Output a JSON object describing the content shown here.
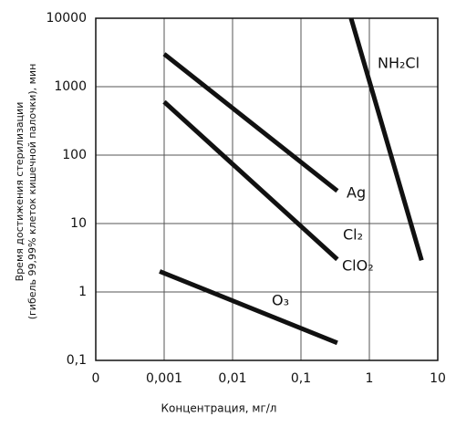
{
  "chart_data": {
    "type": "line",
    "xlabel": "Концентрация, мг/л",
    "ylabel": [
      "Время достижения стерилизации",
      "(гибель 99,99% клеток кишечной палочки),  мин"
    ],
    "xlog": true,
    "ylog": true,
    "grid": true,
    "xlim": [
      0.0001,
      10
    ],
    "ylim": [
      0.1,
      10000
    ],
    "xticks": [
      {
        "value": 0.0001,
        "label": "0"
      },
      {
        "value": 0.001,
        "label": "0,001"
      },
      {
        "value": 0.01,
        "label": "0,01"
      },
      {
        "value": 0.1,
        "label": "0,1"
      },
      1,
      10
    ],
    "yticks": [
      {
        "value": 0.1,
        "label": "0,1"
      },
      1,
      10,
      100,
      1000,
      10000
    ],
    "series": [
      {
        "name": "Ag",
        "color": "#111111",
        "x": [
          0.001,
          0.34
        ],
        "values": [
          3000,
          30
        ]
      },
      {
        "name": "Cl₂",
        "color": "#111111",
        "x": [
          0.001,
          0.34
        ],
        "values": [
          600,
          3
        ]
      },
      {
        "name": "O₃",
        "color": "#111111",
        "x": [
          0.00086,
          0.34
        ],
        "values": [
          2,
          0.18
        ]
      },
      {
        "name": "NH₂Cl",
        "color": "#111111",
        "x": [
          0.54,
          5.8
        ],
        "values": [
          10000,
          2.9
        ]
      }
    ],
    "annotations": [
      "ClO₂"
    ]
  }
}
